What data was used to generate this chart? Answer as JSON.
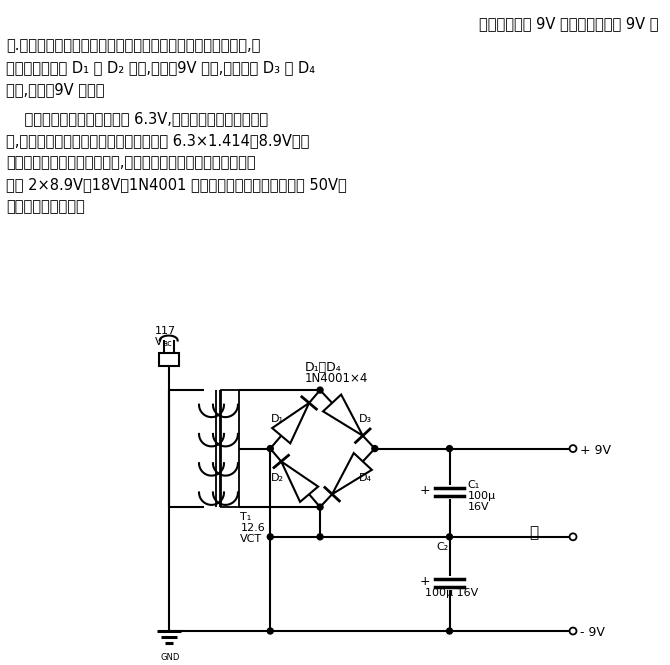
{
  "bg_color": "#ffffff",
  "text_color": "#000000",
  "line_color": "#000000",
  "figsize": [
    6.7,
    6.65
  ],
  "dpi": 100,
  "text_lines_para1": [
    "它可提供正负 9V 电源来代替两个 9V 电",
    "池.整流电路实际上是接在变压器次级的两个独立的全波整流器,其",
    "中一个整流器由 D₁ 和 D₂ 组成,提供＋9V 电源,另一个由 D₃ 和 D₄",
    "组成,提供－9V 电源。"
  ],
  "text_lines_para2": [
    "    每对整流器的输入电压均为 6.3V,这是变压器次级电压的一",
    "半,因此电容上电压可充至交流电压的峰値 6.3×1.414＝8.9V。每",
    "个二极管都承受一个反向电压,该电压至少等于变压器次级的峰値",
    "电压 2×8.9V＝18V。1N4001 可承受的最大峰値反向电压为 50V，",
    "完全适用这一电路。"
  ]
}
